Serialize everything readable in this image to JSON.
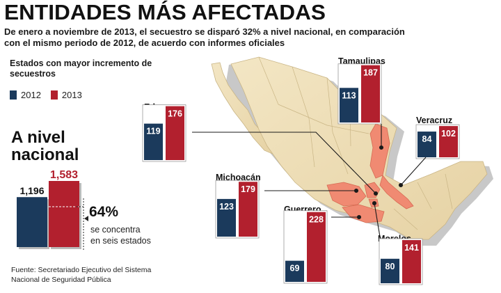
{
  "title": "ENTIDADES MÁS AFECTADAS",
  "subtitle": "De enero a noviembre de 2013, el secuestro se disparó 32% a nivel nacional, en comparación con el mismo periodo de 2012, de acuerdo con informes oficiales",
  "section_title": "Estados con mayor incremento de secuestros",
  "legend": {
    "y2012": "2012",
    "y2013": "2013"
  },
  "national": {
    "title_line1": "A nivel",
    "title_line2": "nacional",
    "v2012": "1,196",
    "v2013": "1,583",
    "percent": "64%",
    "percent_desc_line1": "se concentra",
    "percent_desc_line2": "en seis estados"
  },
  "source_line1": "Fuente: Secretariado Ejecutivo del Sistema",
  "source_line2": "Nacional de Seguridad Pública",
  "colors": {
    "c2012": "#1b3a5c",
    "c2013": "#b2202e",
    "highlight": "#f08a72",
    "map": "#efe0b8"
  },
  "chart_data": {
    "type": "bar",
    "title": "Estados con mayor incremento de secuestros",
    "series_names": [
      "2012",
      "2013"
    ],
    "national": {
      "name": "A nivel nacional",
      "values": [
        1196,
        1583
      ]
    },
    "states": [
      {
        "name": "Edomex",
        "values": [
          119,
          176
        ]
      },
      {
        "name": "Tamaulipas",
        "values": [
          113,
          187
        ]
      },
      {
        "name": "Veracruz",
        "values": [
          84,
          102
        ]
      },
      {
        "name": "Michoacán",
        "values": [
          123,
          179
        ]
      },
      {
        "name": "Guerrero",
        "values": [
          69,
          228
        ]
      },
      {
        "name": "Morelos",
        "values": [
          80,
          141
        ]
      }
    ]
  }
}
